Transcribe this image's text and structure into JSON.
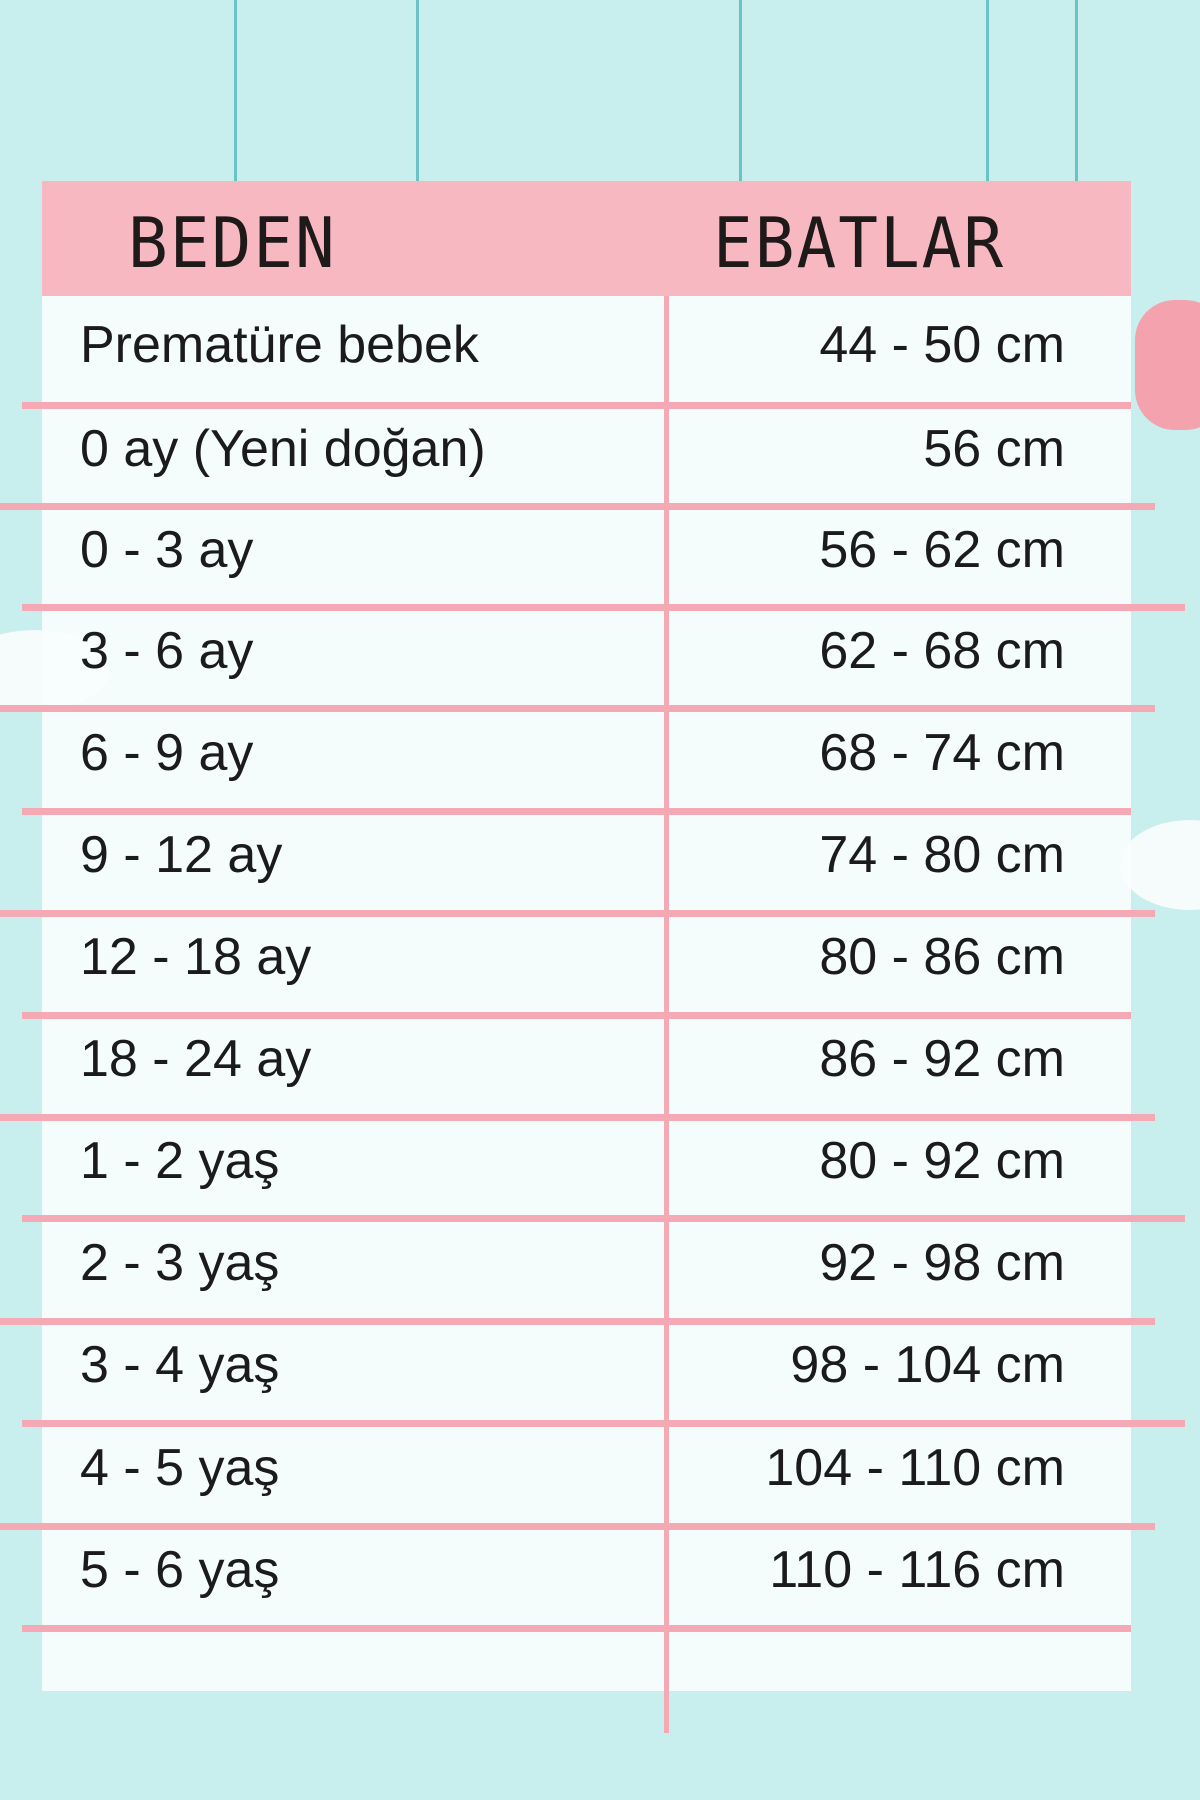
{
  "header": {
    "size_label": "BEDEN",
    "measure_label": "EBATLAR"
  },
  "colors": {
    "background": "#c9eeee",
    "header": "#f8b8c2",
    "lines": "#f4a9b5",
    "strings": "#6cc3c6"
  },
  "rows": [
    {
      "size": "Prematüre bebek",
      "measure": "44 - 50 cm"
    },
    {
      "size": "0 ay (Yeni doğan)",
      "measure": "56 cm"
    },
    {
      "size": "0 - 3 ay",
      "measure": "56 - 62 cm"
    },
    {
      "size": "3 - 6 ay",
      "measure": "62 - 68 cm"
    },
    {
      "size": "6 - 9 ay",
      "measure": "68 - 74 cm"
    },
    {
      "size": "9 - 12 ay",
      "measure": "74 - 80 cm"
    },
    {
      "size": "12 - 18 ay",
      "measure": "80 - 86 cm"
    },
    {
      "size": "18 - 24 ay",
      "measure": "86 - 92 cm"
    },
    {
      "size": "1 - 2 yaş",
      "measure": "80 - 92 cm"
    },
    {
      "size": "2 - 3 yaş",
      "measure": "92 - 98 cm"
    },
    {
      "size": "3 - 4 yaş",
      "measure": "98 - 104 cm"
    },
    {
      "size": "4 - 5 yaş",
      "measure": "104 - 110 cm"
    },
    {
      "size": "5 - 6 yaş",
      "measure": "110 - 116 cm"
    }
  ]
}
